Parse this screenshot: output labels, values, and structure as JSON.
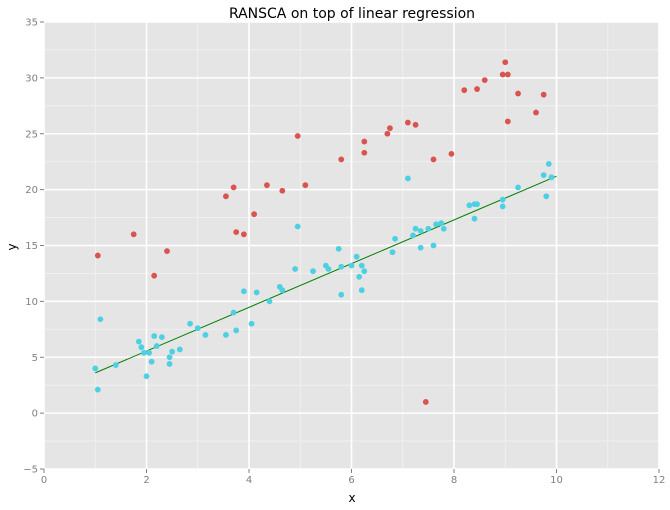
{
  "chart_data": {
    "type": "scatter",
    "title": "RANSCA on top of linear regression",
    "xlabel": "x",
    "ylabel": "y",
    "xlim": [
      0,
      12
    ],
    "ylim": [
      -5,
      35
    ],
    "xticks": [
      0,
      2,
      4,
      6,
      8,
      10,
      12
    ],
    "yticks": [
      -5,
      0,
      5,
      10,
      15,
      20,
      25,
      30,
      35
    ],
    "grid": true,
    "colors": {
      "panel": "#e5e5e5",
      "grid_major": "#ffffff",
      "grid_minor": "#f2f2f2",
      "outliers": "#d9534f",
      "inliers": "#4dd0e1",
      "fit_line": "#008000",
      "tick": "#7f7f7f"
    },
    "series": [
      {
        "role": "outliers",
        "points": [
          [
            1.05,
            14.1
          ],
          [
            1.75,
            16.0
          ],
          [
            2.15,
            12.3
          ],
          [
            2.4,
            14.5
          ],
          [
            3.55,
            19.4
          ],
          [
            3.7,
            20.2
          ],
          [
            3.75,
            16.2
          ],
          [
            3.9,
            16.0
          ],
          [
            4.1,
            17.8
          ],
          [
            4.35,
            20.4
          ],
          [
            4.65,
            19.9
          ],
          [
            4.95,
            24.8
          ],
          [
            5.1,
            20.4
          ],
          [
            5.8,
            22.7
          ],
          [
            6.25,
            24.3
          ],
          [
            6.25,
            23.3
          ],
          [
            6.7,
            25.0
          ],
          [
            6.75,
            25.5
          ],
          [
            7.1,
            26.0
          ],
          [
            7.25,
            25.8
          ],
          [
            7.45,
            1.0
          ],
          [
            7.6,
            22.7
          ],
          [
            7.95,
            23.2
          ],
          [
            8.2,
            28.9
          ],
          [
            8.45,
            29.0
          ],
          [
            8.6,
            29.8
          ],
          [
            8.95,
            30.3
          ],
          [
            9.0,
            31.4
          ],
          [
            9.05,
            30.3
          ],
          [
            9.05,
            26.1
          ],
          [
            9.25,
            28.6
          ],
          [
            9.6,
            26.9
          ],
          [
            9.75,
            28.5
          ]
        ]
      },
      {
        "role": "inliers",
        "points": [
          [
            1.0,
            4.0
          ],
          [
            1.05,
            2.1
          ],
          [
            1.1,
            8.4
          ],
          [
            1.4,
            4.3
          ],
          [
            1.85,
            6.4
          ],
          [
            1.9,
            5.9
          ],
          [
            1.95,
            5.4
          ],
          [
            2.0,
            3.3
          ],
          [
            2.05,
            5.4
          ],
          [
            2.1,
            4.6
          ],
          [
            2.15,
            6.9
          ],
          [
            2.2,
            6.0
          ],
          [
            2.3,
            6.8
          ],
          [
            2.45,
            5.0
          ],
          [
            2.45,
            4.4
          ],
          [
            2.5,
            5.5
          ],
          [
            2.65,
            5.7
          ],
          [
            2.85,
            8.0
          ],
          [
            3.0,
            7.6
          ],
          [
            3.15,
            7.0
          ],
          [
            3.55,
            7.0
          ],
          [
            3.7,
            9.0
          ],
          [
            3.75,
            7.4
          ],
          [
            3.9,
            10.9
          ],
          [
            4.05,
            8.0
          ],
          [
            4.15,
            10.8
          ],
          [
            4.4,
            10.0
          ],
          [
            4.6,
            11.3
          ],
          [
            4.65,
            11.0
          ],
          [
            4.9,
            12.9
          ],
          [
            4.95,
            16.7
          ],
          [
            5.25,
            12.7
          ],
          [
            5.5,
            13.2
          ],
          [
            5.55,
            12.9
          ],
          [
            5.75,
            14.7
          ],
          [
            5.8,
            10.6
          ],
          [
            5.8,
            13.1
          ],
          [
            6.0,
            13.2
          ],
          [
            6.1,
            14.0
          ],
          [
            6.15,
            12.2
          ],
          [
            6.2,
            11.0
          ],
          [
            6.2,
            13.2
          ],
          [
            6.25,
            12.7
          ],
          [
            6.8,
            14.4
          ],
          [
            6.85,
            15.6
          ],
          [
            7.1,
            21.0
          ],
          [
            7.2,
            15.9
          ],
          [
            7.25,
            16.5
          ],
          [
            7.35,
            16.3
          ],
          [
            7.35,
            14.8
          ],
          [
            7.5,
            16.5
          ],
          [
            7.6,
            15.0
          ],
          [
            7.65,
            16.9
          ],
          [
            7.75,
            17.0
          ],
          [
            7.8,
            16.5
          ],
          [
            8.3,
            18.6
          ],
          [
            8.4,
            18.7
          ],
          [
            8.4,
            17.4
          ],
          [
            8.45,
            18.7
          ],
          [
            8.95,
            19.1
          ],
          [
            8.95,
            18.5
          ],
          [
            9.25,
            20.2
          ],
          [
            9.75,
            21.3
          ],
          [
            9.8,
            19.4
          ],
          [
            9.85,
            22.3
          ],
          [
            9.9,
            21.1
          ]
        ]
      }
    ],
    "fit_line": {
      "x": [
        1.0,
        10.0
      ],
      "y": [
        3.6,
        21.2
      ]
    }
  }
}
